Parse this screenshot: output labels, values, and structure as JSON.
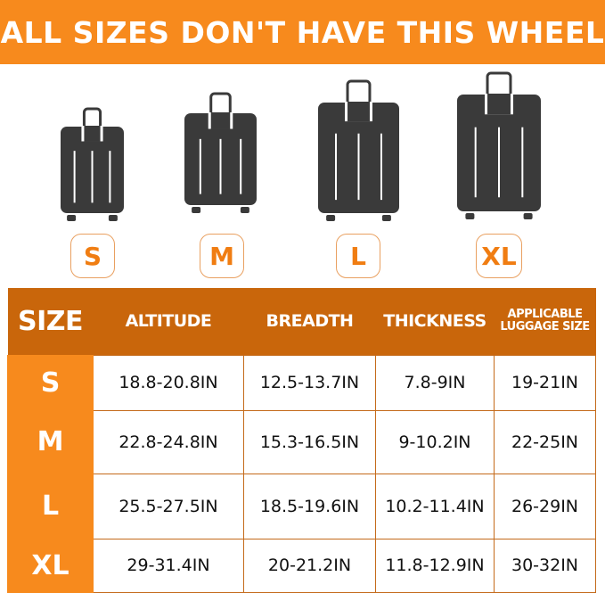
{
  "banner": {
    "title": "ALL SIZES DON'T HAVE THIS WHEEL"
  },
  "sizes": [
    "S",
    "M",
    "L",
    "XL"
  ],
  "colors": {
    "accent": "#f78a1d",
    "header": "#c9660b",
    "suitcase": "#3a3a3a"
  },
  "table": {
    "headers": [
      "SIZE",
      "ALTITUDE",
      "BREADTH",
      "THICKNESS",
      "APPLICABLE LUGGAGE SIZE"
    ],
    "rows": [
      {
        "size": "S",
        "altitude": "18.8-20.8IN",
        "breadth": "12.5-13.7IN",
        "thickness": "7.8-9IN",
        "luggage": "19-21IN"
      },
      {
        "size": "M",
        "altitude": "22.8-24.8IN",
        "breadth": "15.3-16.5IN",
        "thickness": "9-10.2IN",
        "luggage": "22-25IN"
      },
      {
        "size": "L",
        "altitude": "25.5-27.5IN",
        "breadth": "18.5-19.6IN",
        "thickness": "10.2-11.4IN",
        "luggage": "26-29IN"
      },
      {
        "size": "XL",
        "altitude": "29-31.4IN",
        "breadth": "20-21.2IN",
        "thickness": "11.8-12.9IN",
        "luggage": "30-32IN"
      }
    ]
  }
}
